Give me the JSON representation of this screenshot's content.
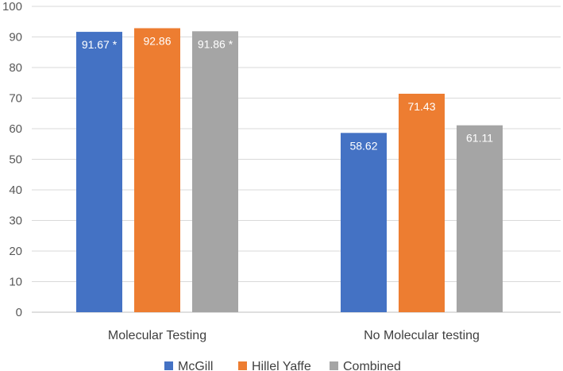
{
  "chart_data": {
    "type": "bar",
    "categories": [
      "Molecular Testing",
      "No Molecular testing"
    ],
    "series": [
      {
        "name": "McGill",
        "color": "#4472C4",
        "values": [
          91.67,
          58.62
        ],
        "labels": [
          "91.67 *",
          "58.62"
        ]
      },
      {
        "name": "Hillel Yaffe",
        "color": "#ED7D31",
        "values": [
          92.86,
          71.43
        ],
        "labels": [
          "92.86",
          "71.43"
        ]
      },
      {
        "name": "Combined",
        "color": "#A5A5A5",
        "values": [
          91.86,
          61.11
        ],
        "labels": [
          "91.86 *",
          "61.11"
        ]
      }
    ],
    "yticks": [
      "0",
      "10",
      "20",
      "30",
      "40",
      "50",
      "60",
      "70",
      "80",
      "90",
      "100"
    ],
    "ylim": [
      0,
      100
    ],
    "grid": true,
    "legend_position": "bottom",
    "xlabel": "",
    "ylabel": "",
    "title": ""
  }
}
